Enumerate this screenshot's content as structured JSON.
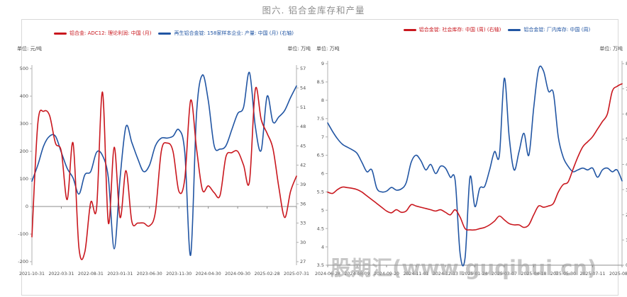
{
  "title": "图六. 铝合金库存和产量",
  "watermark": "股期汇(www.guqihui.cn)",
  "chart_data": [
    {
      "type": "line",
      "name": "aluminum-alloy-profit-and-production",
      "unit_left": "单位: 元/吨",
      "unit_right": "单位: 万吨",
      "x_labels": [
        "2021-10-31",
        "2022-03-31",
        "2022-08-31",
        "2023-01-31",
        "2023-06-30",
        "2023-11-30",
        "2024-04-30",
        "2024-09-30",
        "2025-02-28",
        "2025-07-31"
      ],
      "left_axis": {
        "min": -200,
        "max": 500,
        "step": 100
      },
      "right_axis": {
        "min": 27,
        "max": 57,
        "step": 3
      },
      "grid": false,
      "legend_position": "top",
      "series": [
        {
          "label": "铝合金: ADC12: 理论利润: 中国 (月)",
          "color": "#c9171e",
          "axis": "left",
          "values": [
            -110,
            300,
            345,
            330,
            230,
            200,
            25,
            230,
            -150,
            -165,
            15,
            -5,
            415,
            -60,
            215,
            -40,
            130,
            -55,
            -60,
            -60,
            -70,
            -20,
            200,
            230,
            200,
            55,
            100,
            385,
            210,
            60,
            75,
            50,
            40,
            180,
            195,
            200,
            150,
            90,
            425,
            315,
            265,
            210,
            70,
            -40,
            55,
            110
          ]
        },
        {
          "label": "再生铝合金锭: 158家样本企业: 产量: 中国 (月) (右轴)",
          "color": "#2155a3",
          "axis": "right",
          "values": [
            39.5,
            42,
            45,
            46.5,
            46.5,
            44,
            41.5,
            40,
            37.5,
            40.5,
            41,
            44,
            43.5,
            40,
            29,
            40,
            48,
            45.5,
            43,
            41,
            42,
            45,
            46.2,
            46.2,
            46.5,
            47.5,
            44,
            28,
            50,
            56,
            52,
            45,
            44.5,
            45,
            47.5,
            50,
            51,
            56.4,
            48,
            44.3,
            52.7,
            48.7,
            49.5,
            50.5,
            52.5,
            54.3
          ]
        }
      ]
    },
    {
      "type": "line",
      "name": "aluminum-alloy-ingot-inventory",
      "unit_left": "单位: 万吨",
      "unit_right": "单位: 万吨",
      "x_labels": [
        "2024-06-28",
        "2024-08-09",
        "2024-09-20",
        "2024-11-01",
        "2024-12-13",
        "2025-01-24",
        "2025-03-07",
        "2025-04-18",
        "2025-05-30",
        "2025-07-11",
        "2025-08-22"
      ],
      "left_axis": {
        "min": 3.5,
        "max": 9,
        "step": 0.5
      },
      "right_axis": {
        "min": 0,
        "max": 8,
        "step": 1
      },
      "grid": false,
      "legend_position": "top",
      "series": [
        {
          "label": "铝合金锭: 社会库存: 中国 (周) (右轴)",
          "color": "#c9171e",
          "axis": "right",
          "values": [
            2.9,
            2.85,
            3.0,
            3.1,
            3.08,
            3.05,
            3.0,
            2.9,
            2.75,
            2.6,
            2.45,
            2.3,
            2.15,
            2.08,
            2.2,
            2.1,
            2.15,
            2.4,
            2.35,
            2.3,
            2.25,
            2.2,
            2.15,
            2.2,
            2.1,
            2.0,
            2.2,
            1.9,
            1.45,
            1.4,
            1.4,
            1.45,
            1.5,
            1.6,
            1.75,
            1.95,
            1.8,
            1.65,
            1.6,
            1.6,
            1.5,
            1.6,
            2.0,
            2.35,
            2.3,
            2.35,
            2.45,
            2.9,
            3.2,
            3.3,
            3.8,
            4.3,
            4.7,
            4.9,
            5.1,
            5.4,
            5.7,
            6.0,
            6.9,
            7.1,
            7.2
          ]
        },
        {
          "label": "铝合金锭: 厂内库存: 中国 (周)",
          "color": "#2155a3",
          "axis": "left",
          "values": [
            7.38,
            7.15,
            6.95,
            6.8,
            6.72,
            6.65,
            6.55,
            6.3,
            6.05,
            6.1,
            5.6,
            5.5,
            5.52,
            5.62,
            5.55,
            5.58,
            5.75,
            6.3,
            6.5,
            6.35,
            6.1,
            6.25,
            6.0,
            6.2,
            6.15,
            5.9,
            5.8,
            3.8,
            3.7,
            5.9,
            5.1,
            5.6,
            5.65,
            6.1,
            6.6,
            6.5,
            8.6,
            7.0,
            6.1,
            6.6,
            7.1,
            6.5,
            7.8,
            8.85,
            8.8,
            8.25,
            8.2,
            7.0,
            6.45,
            6.2,
            6.05,
            6.1,
            6.15,
            6.1,
            6.15,
            5.9,
            6.1,
            6.15,
            6.05,
            6.1,
            5.8
          ]
        }
      ]
    }
  ]
}
